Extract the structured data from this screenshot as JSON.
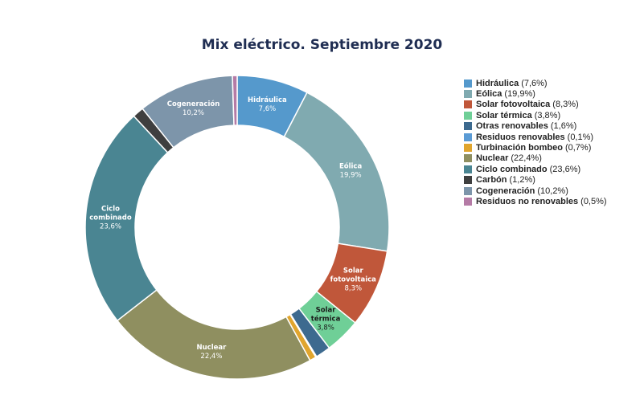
{
  "chart_data": {
    "type": "pie",
    "title": "Mix eléctrico. Septiembre 2020",
    "legend_position": "right",
    "slices": [
      {
        "name": "Hidráulica",
        "value": 7.6,
        "label": "7,6%",
        "legend_value": "(7,6%)",
        "color": "#5599cc",
        "label_color": "#ffffff"
      },
      {
        "name": "Eólica",
        "value": 19.9,
        "label": "19,9%",
        "legend_value": "(19,9%)",
        "color": "#80aab0",
        "label_color": "#ffffff"
      },
      {
        "name": "Solar fotovoltaica",
        "value": 8.3,
        "label": "8,3%",
        "legend_value": "(8,3%)",
        "color": "#c0573a",
        "label_color": "#ffffff"
      },
      {
        "name": "Solar térmica",
        "value": 3.8,
        "label": "3,8%",
        "legend_value": "(3,8%)",
        "color": "#6fcf97",
        "label_color": "#1a1a1a"
      },
      {
        "name": "Otras renovables",
        "value": 1.6,
        "label": "",
        "legend_value": "(1,6%)",
        "color": "#3d6a8f",
        "label_color": "#ffffff"
      },
      {
        "name": "Residuos renovables",
        "value": 0.1,
        "label": "",
        "legend_value": "(0,1%)",
        "color": "#5b9bd5",
        "label_color": "#ffffff"
      },
      {
        "name": "Turbinación bombeo",
        "value": 0.7,
        "label": "",
        "legend_value": "(0,7%)",
        "color": "#e0a52e",
        "label_color": "#ffffff"
      },
      {
        "name": "Nuclear",
        "value": 22.4,
        "label": "22,4%",
        "legend_value": "(22,4%)",
        "color": "#8f8f60",
        "label_color": "#ffffff"
      },
      {
        "name": "Ciclo combinado",
        "value": 23.6,
        "label": "23,6%",
        "legend_value": "(23,6%)",
        "color": "#4a8592",
        "label_color": "#ffffff"
      },
      {
        "name": "Carbón",
        "value": 1.2,
        "label": "",
        "legend_value": "(1,2%)",
        "color": "#3f3f3f",
        "label_color": "#ffffff"
      },
      {
        "name": "Cogeneración",
        "value": 10.2,
        "label": "10,2%",
        "legend_value": "(10,2%)",
        "color": "#7d95aa",
        "label_color": "#ffffff"
      },
      {
        "name": "Residuos no renovables",
        "value": 0.5,
        "label": "",
        "legend_value": "(0,5%)",
        "color": "#b57ba6",
        "label_color": "#ffffff"
      }
    ]
  }
}
